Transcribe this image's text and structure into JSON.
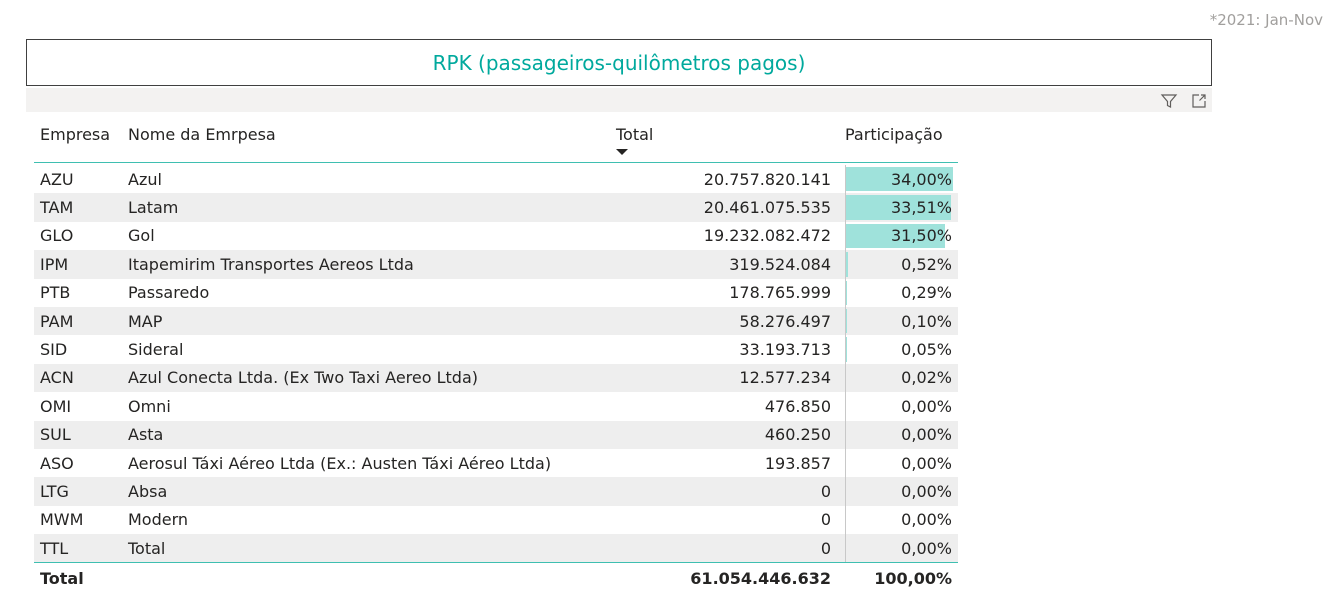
{
  "note": "*2021: Jan-Nov",
  "title": "RPK (passageiros-quilômetros pagos)",
  "header_icons": [
    "filter-icon",
    "focus-mode-icon"
  ],
  "columns": {
    "code": "Empresa",
    "name": "Nome da Emrpesa",
    "total": "Total",
    "share": "Participação"
  },
  "rows": [
    {
      "code": "AZU",
      "name": "Azul",
      "total": "20.757.820.141",
      "share": "34,00%",
      "share_value": 34.0
    },
    {
      "code": "TAM",
      "name": "Latam",
      "total": "20.461.075.535",
      "share": "33,51%",
      "share_value": 33.51
    },
    {
      "code": "GLO",
      "name": "Gol",
      "total": "19.232.082.472",
      "share": "31,50%",
      "share_value": 31.5
    },
    {
      "code": "IPM",
      "name": "Itapemirim Transportes Aereos Ltda",
      "total": "319.524.084",
      "share": "0,52%",
      "share_value": 0.52
    },
    {
      "code": "PTB",
      "name": "Passaredo",
      "total": "178.765.999",
      "share": "0,29%",
      "share_value": 0.29
    },
    {
      "code": "PAM",
      "name": "MAP",
      "total": "58.276.497",
      "share": "0,10%",
      "share_value": 0.1
    },
    {
      "code": "SID",
      "name": "Sideral",
      "total": "33.193.713",
      "share": "0,05%",
      "share_value": 0.05
    },
    {
      "code": "ACN",
      "name": "Azul Conecta Ltda. (Ex Two Taxi Aereo Ltda)",
      "total": "12.577.234",
      "share": "0,02%",
      "share_value": 0.02
    },
    {
      "code": "OMI",
      "name": "Omni",
      "total": "476.850",
      "share": "0,00%",
      "share_value": 0.0
    },
    {
      "code": "SUL",
      "name": "Asta",
      "total": "460.250",
      "share": "0,00%",
      "share_value": 0.0
    },
    {
      "code": "ASO",
      "name": "Aerosul Táxi Aéreo Ltda (Ex.: Austen Táxi Aéreo Ltda)",
      "total": "193.857",
      "share": "0,00%",
      "share_value": 0.0
    },
    {
      "code": "LTG",
      "name": "Absa",
      "total": "0",
      "share": "0,00%",
      "share_value": 0.0
    },
    {
      "code": "MWM",
      "name": "Modern",
      "total": "0",
      "share": "0,00%",
      "share_value": 0.0
    },
    {
      "code": "TTL",
      "name": "Total",
      "total": "0",
      "share": "0,00%",
      "share_value": 0.0
    }
  ],
  "totals": {
    "label": "Total",
    "total": "61.054.446.632",
    "share": "100,00%"
  },
  "colors": {
    "accent": "#00a99d",
    "bar": "#9fe2db"
  }
}
